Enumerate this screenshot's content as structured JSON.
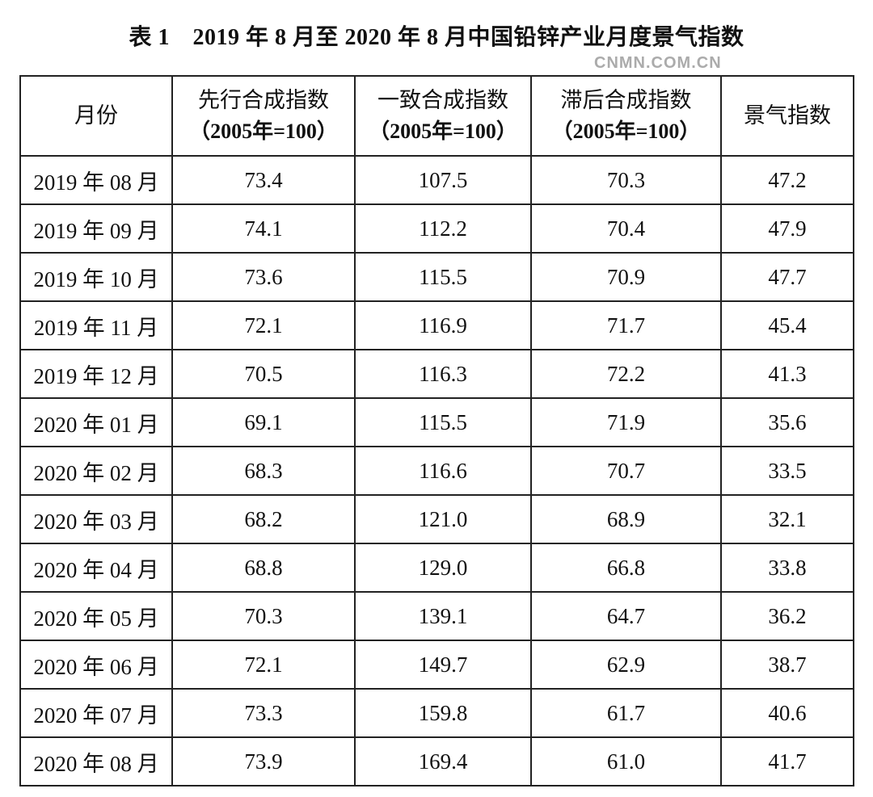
{
  "title": "表 1　2019 年 8 月至 2020 年 8 月中国铅锌产业月度景气指数",
  "headers": [
    {
      "main": "月份",
      "sub": ""
    },
    {
      "main": "先行合成指数",
      "sub": "（2005年=100）"
    },
    {
      "main": "一致合成指数",
      "sub": "（2005年=100）"
    },
    {
      "main": "滞后合成指数",
      "sub": "（2005年=100）"
    },
    {
      "main": "景气指数",
      "sub": ""
    }
  ],
  "rows": [
    [
      "2019 年 08 月",
      "73.4",
      "107.5",
      "70.3",
      "47.2"
    ],
    [
      "2019 年 09 月",
      "74.1",
      "112.2",
      "70.4",
      "47.9"
    ],
    [
      "2019 年 10 月",
      "73.6",
      "115.5",
      "70.9",
      "47.7"
    ],
    [
      "2019 年 11 月",
      "72.1",
      "116.9",
      "71.7",
      "45.4"
    ],
    [
      "2019 年 12 月",
      "70.5",
      "116.3",
      "72.2",
      "41.3"
    ],
    [
      "2020 年 01 月",
      "69.1",
      "115.5",
      "71.9",
      "35.6"
    ],
    [
      "2020 年 02 月",
      "68.3",
      "116.6",
      "70.7",
      "33.5"
    ],
    [
      "2020 年 03 月",
      "68.2",
      "121.0",
      "68.9",
      "32.1"
    ],
    [
      "2020 年 04 月",
      "68.8",
      "129.0",
      "66.8",
      "33.8"
    ],
    [
      "2020 年 05 月",
      "70.3",
      "139.1",
      "64.7",
      "36.2"
    ],
    [
      "2020 年 06 月",
      "72.1",
      "149.7",
      "62.9",
      "38.7"
    ],
    [
      "2020 年 07 月",
      "73.3",
      "159.8",
      "61.7",
      "40.6"
    ],
    [
      "2020 年 08 月",
      "73.9",
      "169.4",
      "61.0",
      "41.7"
    ]
  ],
  "watermark": "CNMN.COM.CN"
}
